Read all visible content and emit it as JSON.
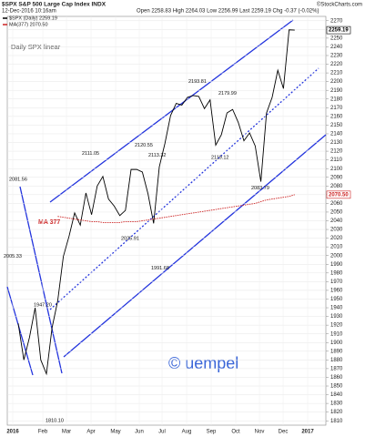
{
  "chart_data": {
    "type": "line",
    "title": "$SPX S&P 500 Large Cap Index INDX",
    "source": "©StockCharts.com",
    "timestamp": "12-Dec-2016 10:16am",
    "quote": "Open 2258.83 High 2264.03 Low 2256.99 Last 2259.19 Chg -0.37 (-0.02%)",
    "subtitle": "Daily SPX linear",
    "ma_label": "MA 377",
    "watermark": "© uempel",
    "x_labels": [
      "2016",
      "Feb",
      "Mar",
      "Apr",
      "May",
      "Jun",
      "Jul",
      "Aug",
      "Sep",
      "Oct",
      "Nov",
      "Dec",
      "2017"
    ],
    "series": [
      {
        "name": "$SPX (Daily) 2259.19",
        "color": "#000000",
        "values": [
          1922,
          1880,
          1906,
          1940,
          1880,
          1864,
          1917,
          1948,
          1999,
          2022,
          2049,
          2035,
          2072,
          2047,
          2080,
          2091,
          2065,
          2057,
          2046,
          2052,
          2099,
          2099,
          2096,
          2071,
          2037,
          2102,
          2129,
          2161,
          2175,
          2173,
          2182,
          2184,
          2183,
          2169,
          2179,
          2127,
          2139,
          2164,
          2168,
          2153,
          2132,
          2141,
          2126,
          2085,
          2164,
          2182,
          2213,
          2192,
          2259.53,
          2259.19
        ],
        "last_label": "2259.19"
      },
      {
        "name": "MA(377) 2070.50",
        "color": "#cc2222",
        "values": [
          null,
          null,
          null,
          null,
          null,
          null,
          null,
          2045,
          2044,
          2043,
          2042,
          2041,
          2040,
          2039,
          2039,
          2038,
          2038,
          2038,
          2038,
          2039,
          2039,
          2039,
          2040,
          2041,
          2042,
          2043,
          2044,
          2045,
          2046,
          2047,
          2048,
          2049,
          2050,
          2051,
          2052,
          2053,
          2054,
          2055,
          2056,
          2057,
          2058,
          2059,
          2060,
          2062,
          2064,
          2065,
          2066,
          2067,
          2068,
          2070
        ],
        "last_label": "2070.50"
      }
    ],
    "annotations": [
      {
        "label": "2081.56",
        "value": 2081.56
      },
      {
        "label": "2005.33",
        "value": 2005.33
      },
      {
        "label": "1947.20",
        "value": 1947.2
      },
      {
        "label": "1810.10",
        "value": 1810.1
      },
      {
        "label": "2111.05",
        "value": 2111.05
      },
      {
        "label": "2025.91",
        "value": 2025.91
      },
      {
        "label": "2120.55",
        "value": 2120.55
      },
      {
        "label": "2113.32",
        "value": 2113.32
      },
      {
        "label": "1991.68",
        "value": 1991.68
      },
      {
        "label": "2193.81",
        "value": 2193.81
      },
      {
        "label": "2179.99",
        "value": 2179.99
      },
      {
        "label": "2119.12",
        "value": 2119.12
      },
      {
        "label": "2083.79",
        "value": 2083.79
      }
    ],
    "ylim": [
      1805,
      2275
    ],
    "yticks": [
      1810,
      1820,
      1830,
      1840,
      1850,
      1860,
      1870,
      1880,
      1890,
      1900,
      1910,
      1920,
      1930,
      1940,
      1950,
      1960,
      1970,
      1980,
      1990,
      2000,
      2010,
      2020,
      2030,
      2040,
      2050,
      2060,
      2070,
      2080,
      2090,
      2100,
      2110,
      2120,
      2130,
      2140,
      2150,
      2160,
      2170,
      2180,
      2190,
      2200,
      2210,
      2220,
      2230,
      2240,
      2250,
      2260,
      2270
    ],
    "grid": true
  }
}
